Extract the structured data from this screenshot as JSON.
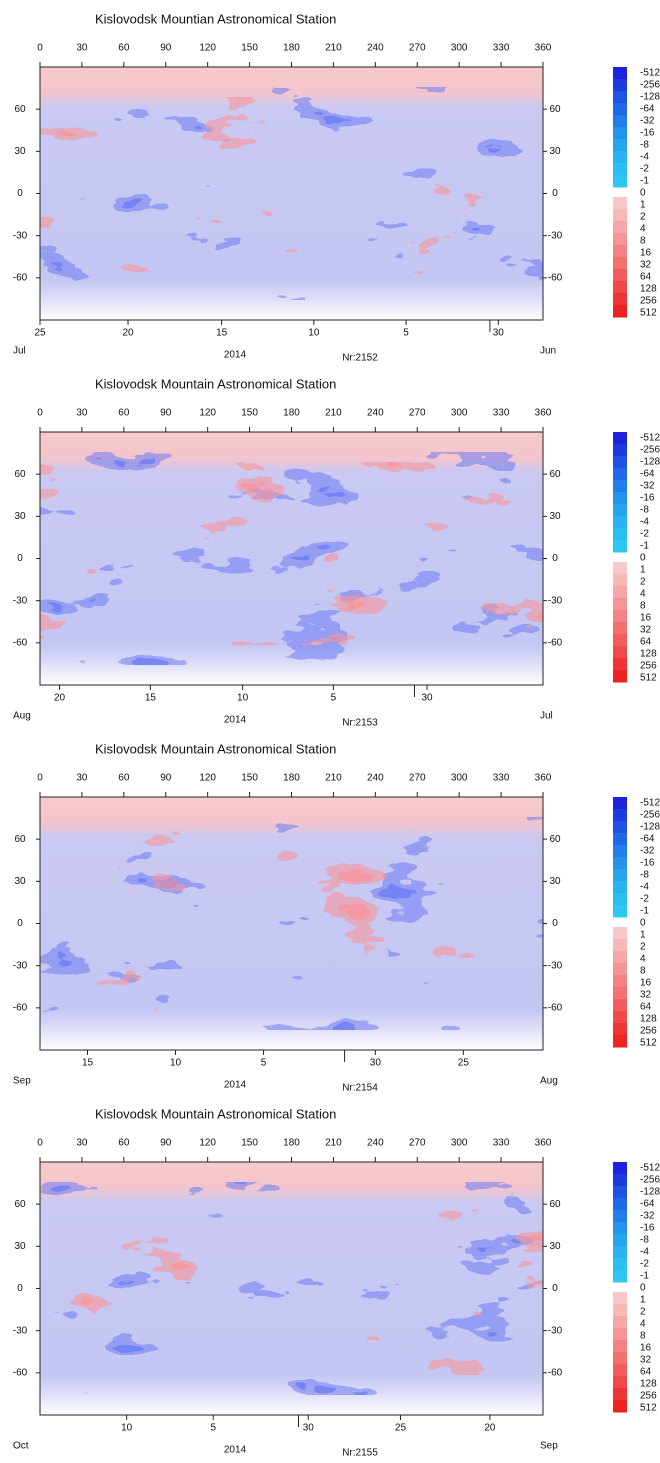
{
  "chart_data": [
    {
      "type": "heatmap",
      "title": "Kislovodsk Mountian Astronomical Station",
      "xlim": [
        0,
        360
      ],
      "xticks": [
        0,
        30,
        60,
        90,
        120,
        150,
        180,
        210,
        240,
        270,
        300,
        330,
        360
      ],
      "ylim": [
        -90,
        90
      ],
      "yticks": [
        60,
        30,
        0,
        -30,
        -60
      ],
      "date_ticks": [
        {
          "value": 0,
          "label": "25"
        },
        {
          "value": 63,
          "label": "20"
        },
        {
          "value": 130,
          "label": "15"
        },
        {
          "value": 196,
          "label": "10"
        },
        {
          "value": 262,
          "label": "5"
        },
        {
          "value": 328,
          "label": "30"
        }
      ],
      "month_boundary": 322,
      "month_left": "Jul",
      "month_right": "Jun",
      "year": "2014",
      "rotation": "Nr:2152"
    },
    {
      "type": "heatmap",
      "title": "Kislovodsk Mountain Astronomical Station",
      "xlim": [
        0,
        360
      ],
      "xticks": [
        0,
        30,
        60,
        90,
        120,
        150,
        180,
        210,
        240,
        270,
        300,
        330,
        360
      ],
      "ylim": [
        -90,
        90
      ],
      "yticks": [
        60,
        30,
        0,
        -30,
        -60
      ],
      "date_ticks": [
        {
          "value": 14,
          "label": "20"
        },
        {
          "value": 79,
          "label": "15"
        },
        {
          "value": 145,
          "label": "10"
        },
        {
          "value": 210,
          "label": "5"
        },
        {
          "value": 277,
          "label": "30"
        }
      ],
      "month_boundary": 268,
      "month_left": "Aug",
      "month_right": "Jul",
      "year": "2014",
      "rotation": "Nr:2153"
    },
    {
      "type": "heatmap",
      "title": "Kislovodsk Mountain Astronomical Station",
      "xlim": [
        0,
        360
      ],
      "xticks": [
        0,
        30,
        60,
        90,
        120,
        150,
        180,
        210,
        240,
        270,
        300,
        330,
        360
      ],
      "ylim": [
        -90,
        90
      ],
      "yticks": [
        60,
        30,
        0,
        -30,
        -60
      ],
      "date_ticks": [
        {
          "value": 34,
          "label": "15"
        },
        {
          "value": 97,
          "label": "10"
        },
        {
          "value": 160,
          "label": "5"
        },
        {
          "value": 240,
          "label": "30"
        },
        {
          "value": 303,
          "label": "25"
        }
      ],
      "month_boundary": 218,
      "month_left": "Sep",
      "month_right": "Aug",
      "year": "2014",
      "rotation": "Nr:2154"
    },
    {
      "type": "heatmap",
      "title": "Kislovodsk Mountain Astronomical Station",
      "xlim": [
        0,
        360
      ],
      "xticks": [
        0,
        30,
        60,
        90,
        120,
        150,
        180,
        210,
        240,
        270,
        300,
        330,
        360
      ],
      "ylim": [
        -90,
        90
      ],
      "yticks": [
        60,
        30,
        0,
        -30,
        -60
      ],
      "date_ticks": [
        {
          "value": 62,
          "label": "10"
        },
        {
          "value": 124,
          "label": "5"
        },
        {
          "value": 192,
          "label": "30"
        },
        {
          "value": 258,
          "label": "25"
        },
        {
          "value": 322,
          "label": "20"
        }
      ],
      "month_boundary": 185,
      "month_left": "Oct",
      "month_right": "Sep",
      "year": "2014",
      "rotation": "Nr:2155"
    }
  ],
  "colorbar": {
    "negative": [
      -512,
      -256,
      -128,
      -64,
      -32,
      -16,
      -8,
      -4,
      -2,
      -1
    ],
    "negative_colors": [
      "#1c22e0",
      "#1d3ae2",
      "#1e52e5",
      "#2068e8",
      "#227eea",
      "#2592ec",
      "#27a4ee",
      "#29b2ef",
      "#2bbef0",
      "#2dc8f0"
    ],
    "zero": 0,
    "positive": [
      1,
      2,
      4,
      8,
      16,
      32,
      64,
      128,
      256,
      512
    ],
    "positive_colors": [
      "#f8c8c8",
      "#f7b8b8",
      "#f6a6a6",
      "#f59494",
      "#f48282",
      "#f37070",
      "#f25c5c",
      "#f14848",
      "#f03434",
      "#ef2222"
    ]
  }
}
